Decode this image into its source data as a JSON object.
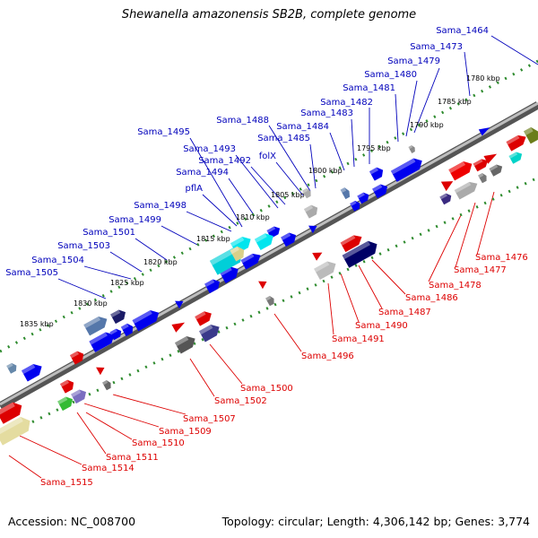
{
  "title": "Shewanella amazonensis SB2B, complete genome",
  "footer": {
    "accession": "Accession: NC_008700",
    "summary": "Topology: circular; Length: 4,306,142 bp; Genes: 3,774"
  },
  "colors": {
    "upper_label": "#0000bb",
    "lower_label": "#dd0000",
    "backbone": "#8a8a8a",
    "track_dots": "#2e8b2e"
  },
  "ticks": [
    "1780 kbp",
    "1785 kbp",
    "1790 kbp",
    "1795 kbp",
    "1800 kbp",
    "1805 kbp",
    "1810 kbp",
    "1815 kbp",
    "1820 kbp",
    "1825 kbp",
    "1830 kbp",
    "1835 kbp"
  ],
  "upper_labels": [
    "Sama_1464",
    "Sama_1473",
    "Sama_1479",
    "Sama_1480",
    "Sama_1481",
    "Sama_1482",
    "Sama_1483",
    "Sama_1484",
    "Sama_1485",
    "Sama_1488",
    "folX",
    "Sama_1492",
    "Sama_1493",
    "Sama_1494",
    "pflA",
    "Sama_1495",
    "Sama_1498",
    "Sama_1499",
    "Sama_1501",
    "Sama_1503",
    "Sama_1504",
    "Sama_1505"
  ],
  "lower_labels": [
    "Sama_1476",
    "Sama_1477",
    "Sama_1478",
    "Sama_1486",
    "Sama_1487",
    "Sama_1490",
    "Sama_1491",
    "Sama_1496",
    "Sama_1500",
    "Sama_1502",
    "Sama_1507",
    "Sama_1509",
    "Sama_1510",
    "Sama_1511",
    "Sama_1514",
    "Sama_1515"
  ]
}
